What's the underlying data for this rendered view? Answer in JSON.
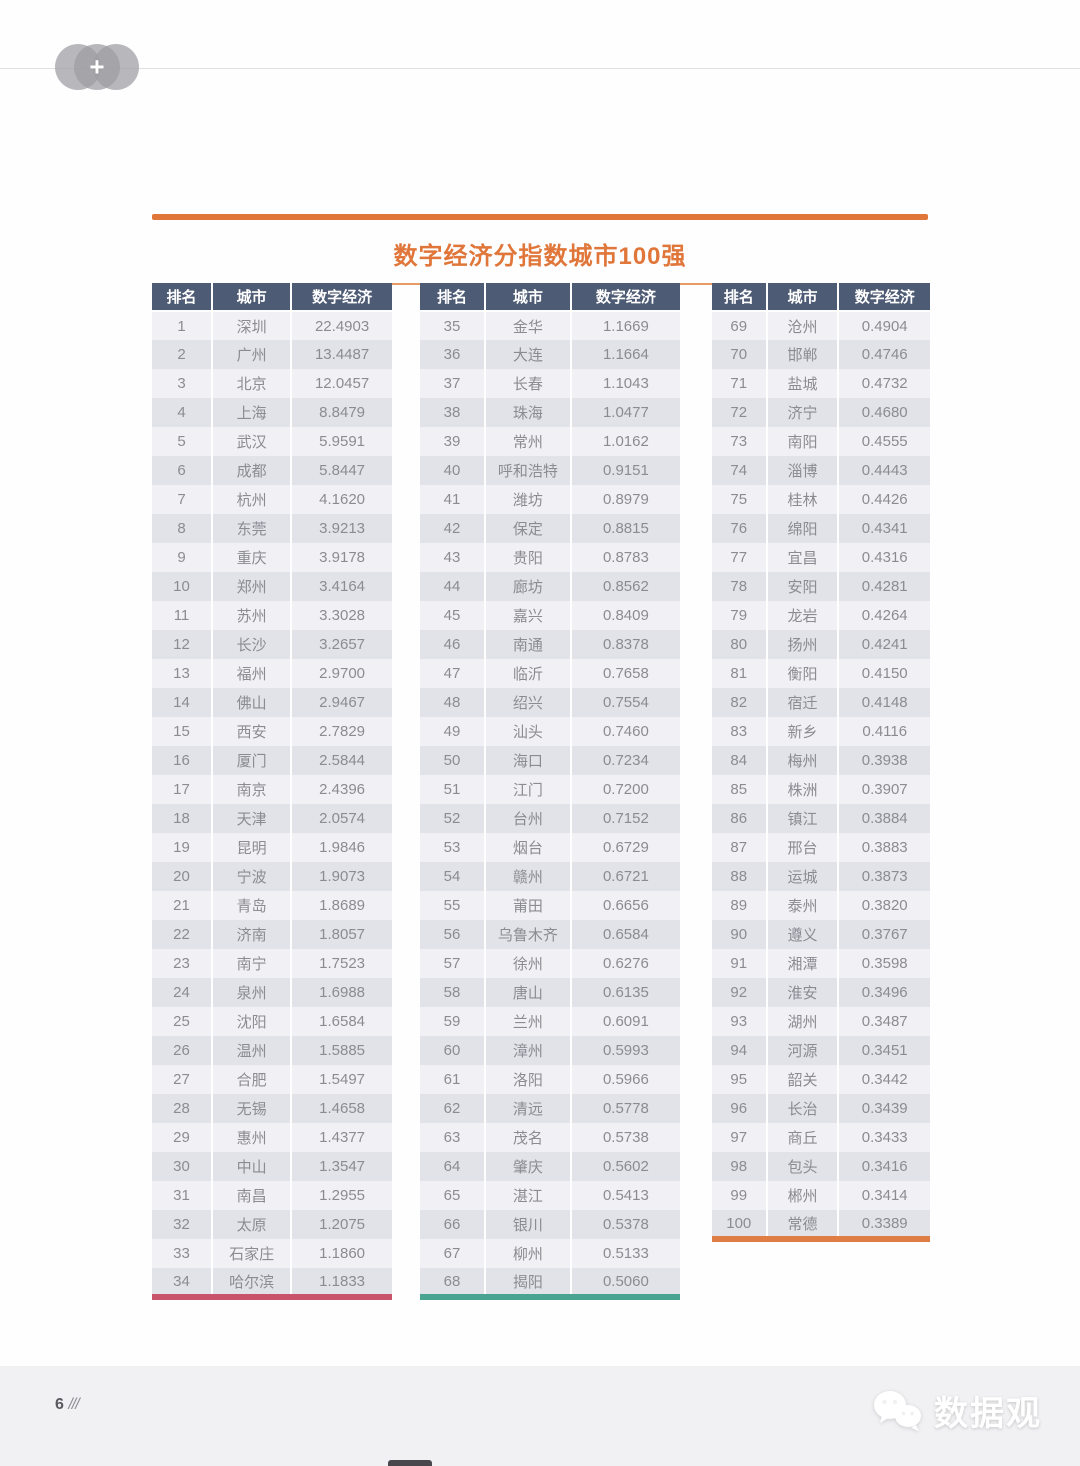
{
  "header": {
    "title": "数字经济分指数城市100强"
  },
  "table_headers": [
    "排名",
    "城市",
    "数字经济"
  ],
  "colors": {
    "title_orange": "#e0763a",
    "table_header_bg": "#4e5b74",
    "row_light": "#f1f1f5",
    "row_dark": "#e2e2e9",
    "accent_table1": "#c9536b",
    "accent_table2": "#48a391",
    "accent_table3": "#e07d45"
  },
  "tables": [
    {
      "accent_color": "#c9536b",
      "rows": [
        [
          "1",
          "深圳",
          "22.4903"
        ],
        [
          "2",
          "广州",
          "13.4487"
        ],
        [
          "3",
          "北京",
          "12.0457"
        ],
        [
          "4",
          "上海",
          "8.8479"
        ],
        [
          "5",
          "武汉",
          "5.9591"
        ],
        [
          "6",
          "成都",
          "5.8447"
        ],
        [
          "7",
          "杭州",
          "4.1620"
        ],
        [
          "8",
          "东莞",
          "3.9213"
        ],
        [
          "9",
          "重庆",
          "3.9178"
        ],
        [
          "10",
          "郑州",
          "3.4164"
        ],
        [
          "11",
          "苏州",
          "3.3028"
        ],
        [
          "12",
          "长沙",
          "3.2657"
        ],
        [
          "13",
          "福州",
          "2.9700"
        ],
        [
          "14",
          "佛山",
          "2.9467"
        ],
        [
          "15",
          "西安",
          "2.7829"
        ],
        [
          "16",
          "厦门",
          "2.5844"
        ],
        [
          "17",
          "南京",
          "2.4396"
        ],
        [
          "18",
          "天津",
          "2.0574"
        ],
        [
          "19",
          "昆明",
          "1.9846"
        ],
        [
          "20",
          "宁波",
          "1.9073"
        ],
        [
          "21",
          "青岛",
          "1.8689"
        ],
        [
          "22",
          "济南",
          "1.8057"
        ],
        [
          "23",
          "南宁",
          "1.7523"
        ],
        [
          "24",
          "泉州",
          "1.6988"
        ],
        [
          "25",
          "沈阳",
          "1.6584"
        ],
        [
          "26",
          "温州",
          "1.5885"
        ],
        [
          "27",
          "合肥",
          "1.5497"
        ],
        [
          "28",
          "无锡",
          "1.4658"
        ],
        [
          "29",
          "惠州",
          "1.4377"
        ],
        [
          "30",
          "中山",
          "1.3547"
        ],
        [
          "31",
          "南昌",
          "1.2955"
        ],
        [
          "32",
          "太原",
          "1.2075"
        ],
        [
          "33",
          "石家庄",
          "1.1860"
        ],
        [
          "34",
          "哈尔滨",
          "1.1833"
        ]
      ]
    },
    {
      "accent_color": "#48a391",
      "rows": [
        [
          "35",
          "金华",
          "1.1669"
        ],
        [
          "36",
          "大连",
          "1.1664"
        ],
        [
          "37",
          "长春",
          "1.1043"
        ],
        [
          "38",
          "珠海",
          "1.0477"
        ],
        [
          "39",
          "常州",
          "1.0162"
        ],
        [
          "40",
          "呼和浩特",
          "0.9151"
        ],
        [
          "41",
          "潍坊",
          "0.8979"
        ],
        [
          "42",
          "保定",
          "0.8815"
        ],
        [
          "43",
          "贵阳",
          "0.8783"
        ],
        [
          "44",
          "廊坊",
          "0.8562"
        ],
        [
          "45",
          "嘉兴",
          "0.8409"
        ],
        [
          "46",
          "南通",
          "0.8378"
        ],
        [
          "47",
          "临沂",
          "0.7658"
        ],
        [
          "48",
          "绍兴",
          "0.7554"
        ],
        [
          "49",
          "汕头",
          "0.7460"
        ],
        [
          "50",
          "海口",
          "0.7234"
        ],
        [
          "51",
          "江门",
          "0.7200"
        ],
        [
          "52",
          "台州",
          "0.7152"
        ],
        [
          "53",
          "烟台",
          "0.6729"
        ],
        [
          "54",
          "赣州",
          "0.6721"
        ],
        [
          "55",
          "莆田",
          "0.6656"
        ],
        [
          "56",
          "乌鲁木齐",
          "0.6584"
        ],
        [
          "57",
          "徐州",
          "0.6276"
        ],
        [
          "58",
          "唐山",
          "0.6135"
        ],
        [
          "59",
          "兰州",
          "0.6091"
        ],
        [
          "60",
          "漳州",
          "0.5993"
        ],
        [
          "61",
          "洛阳",
          "0.5966"
        ],
        [
          "62",
          "清远",
          "0.5778"
        ],
        [
          "63",
          "茂名",
          "0.5738"
        ],
        [
          "64",
          "肇庆",
          "0.5602"
        ],
        [
          "65",
          "湛江",
          "0.5413"
        ],
        [
          "66",
          "银川",
          "0.5378"
        ],
        [
          "67",
          "柳州",
          "0.5133"
        ],
        [
          "68",
          "揭阳",
          "0.5060"
        ]
      ]
    },
    {
      "accent_color": "#e07d45",
      "rows": [
        [
          "69",
          "沧州",
          "0.4904"
        ],
        [
          "70",
          "邯郸",
          "0.4746"
        ],
        [
          "71",
          "盐城",
          "0.4732"
        ],
        [
          "72",
          "济宁",
          "0.4680"
        ],
        [
          "73",
          "南阳",
          "0.4555"
        ],
        [
          "74",
          "淄博",
          "0.4443"
        ],
        [
          "75",
          "桂林",
          "0.4426"
        ],
        [
          "76",
          "绵阳",
          "0.4341"
        ],
        [
          "77",
          "宜昌",
          "0.4316"
        ],
        [
          "78",
          "安阳",
          "0.4281"
        ],
        [
          "79",
          "龙岩",
          "0.4264"
        ],
        [
          "80",
          "扬州",
          "0.4241"
        ],
        [
          "81",
          "衡阳",
          "0.4150"
        ],
        [
          "82",
          "宿迁",
          "0.4148"
        ],
        [
          "83",
          "新乡",
          "0.4116"
        ],
        [
          "84",
          "梅州",
          "0.3938"
        ],
        [
          "85",
          "株洲",
          "0.3907"
        ],
        [
          "86",
          "镇江",
          "0.3884"
        ],
        [
          "87",
          "邢台",
          "0.3883"
        ],
        [
          "88",
          "运城",
          "0.3873"
        ],
        [
          "89",
          "泰州",
          "0.3820"
        ],
        [
          "90",
          "遵义",
          "0.3767"
        ],
        [
          "91",
          "湘潭",
          "0.3598"
        ],
        [
          "92",
          "淮安",
          "0.3496"
        ],
        [
          "93",
          "湖州",
          "0.3487"
        ],
        [
          "94",
          "河源",
          "0.3451"
        ],
        [
          "95",
          "韶关",
          "0.3442"
        ],
        [
          "96",
          "长治",
          "0.3439"
        ],
        [
          "97",
          "商丘",
          "0.3433"
        ],
        [
          "98",
          "包头",
          "0.3416"
        ],
        [
          "99",
          "郴州",
          "0.3414"
        ],
        [
          "100",
          "常德",
          "0.3389"
        ]
      ]
    }
  ],
  "footer": {
    "page_number": "6",
    "slashes": "///",
    "watermark": "数据观"
  }
}
